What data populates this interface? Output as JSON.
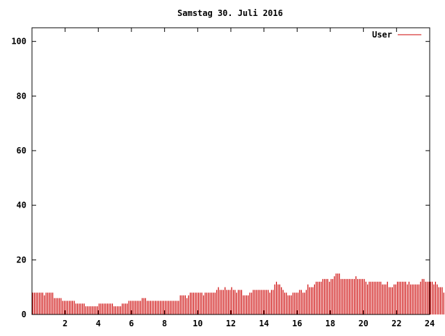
{
  "chart_data": {
    "type": "bar",
    "title": "Samstag 30. Juli 2016",
    "xlabel": "",
    "ylabel": "",
    "xlim": [
      0,
      24
    ],
    "ylim": [
      0,
      105
    ],
    "grid": false,
    "legend_position": "top-right",
    "x_ticks": [
      2,
      4,
      6,
      8,
      10,
      12,
      14,
      16,
      18,
      20,
      22,
      24
    ],
    "y_ticks": [
      0,
      20,
      40,
      60,
      80,
      100
    ],
    "series": [
      {
        "name": "User",
        "color": "#cc0000",
        "bin_hours": 0.1,
        "values": [
          8,
          8,
          8,
          8,
          8,
          8,
          8,
          7,
          8,
          8,
          8,
          8,
          8,
          6,
          6,
          6,
          6,
          6,
          5,
          5,
          5,
          5,
          5,
          5,
          5,
          5,
          4,
          4,
          4,
          4,
          4,
          4,
          3,
          3,
          3,
          3,
          3,
          3,
          3,
          3,
          4,
          4,
          4,
          4,
          4,
          4,
          4,
          4,
          4,
          3,
          3,
          3,
          3,
          3,
          4,
          4,
          4,
          4,
          5,
          5,
          5,
          5,
          5,
          5,
          5,
          5,
          6,
          6,
          6,
          5,
          5,
          5,
          5,
          5,
          5,
          5,
          5,
          5,
          5,
          5,
          5,
          5,
          5,
          5,
          5,
          5,
          5,
          5,
          5,
          7,
          7,
          7,
          7,
          6,
          7,
          8,
          8,
          8,
          8,
          8,
          8,
          8,
          8,
          7,
          8,
          8,
          8,
          8,
          8,
          8,
          8,
          9,
          10,
          9,
          9,
          9,
          10,
          9,
          9,
          9,
          10,
          9,
          9,
          8,
          9,
          9,
          9,
          7,
          7,
          7,
          7,
          8,
          8,
          9,
          9,
          9,
          9,
          9,
          9,
          9,
          9,
          9,
          9,
          8,
          9,
          9,
          11,
          12,
          11,
          11,
          10,
          9,
          8,
          8,
          7,
          7,
          7,
          8,
          8,
          8,
          8,
          9,
          9,
          8,
          8,
          9,
          11,
          10,
          10,
          10,
          11,
          12,
          12,
          12,
          12,
          13,
          13,
          13,
          13,
          12,
          13,
          13,
          14,
          15,
          15,
          15,
          13,
          13,
          13,
          13,
          13,
          13,
          13,
          13,
          13,
          14,
          13,
          13,
          13,
          13,
          13,
          12,
          11,
          12,
          12,
          12,
          12,
          12,
          12,
          12,
          12,
          11,
          11,
          11,
          12,
          10,
          10,
          10,
          11,
          11,
          12,
          12,
          12,
          12,
          12,
          12,
          11,
          12,
          11,
          11,
          11,
          11,
          11,
          11,
          12,
          13,
          13,
          12,
          12,
          12,
          12,
          12,
          11,
          12,
          11,
          10,
          10,
          10,
          8,
          7,
          6,
          6,
          6,
          7,
          6
        ]
      }
    ]
  }
}
